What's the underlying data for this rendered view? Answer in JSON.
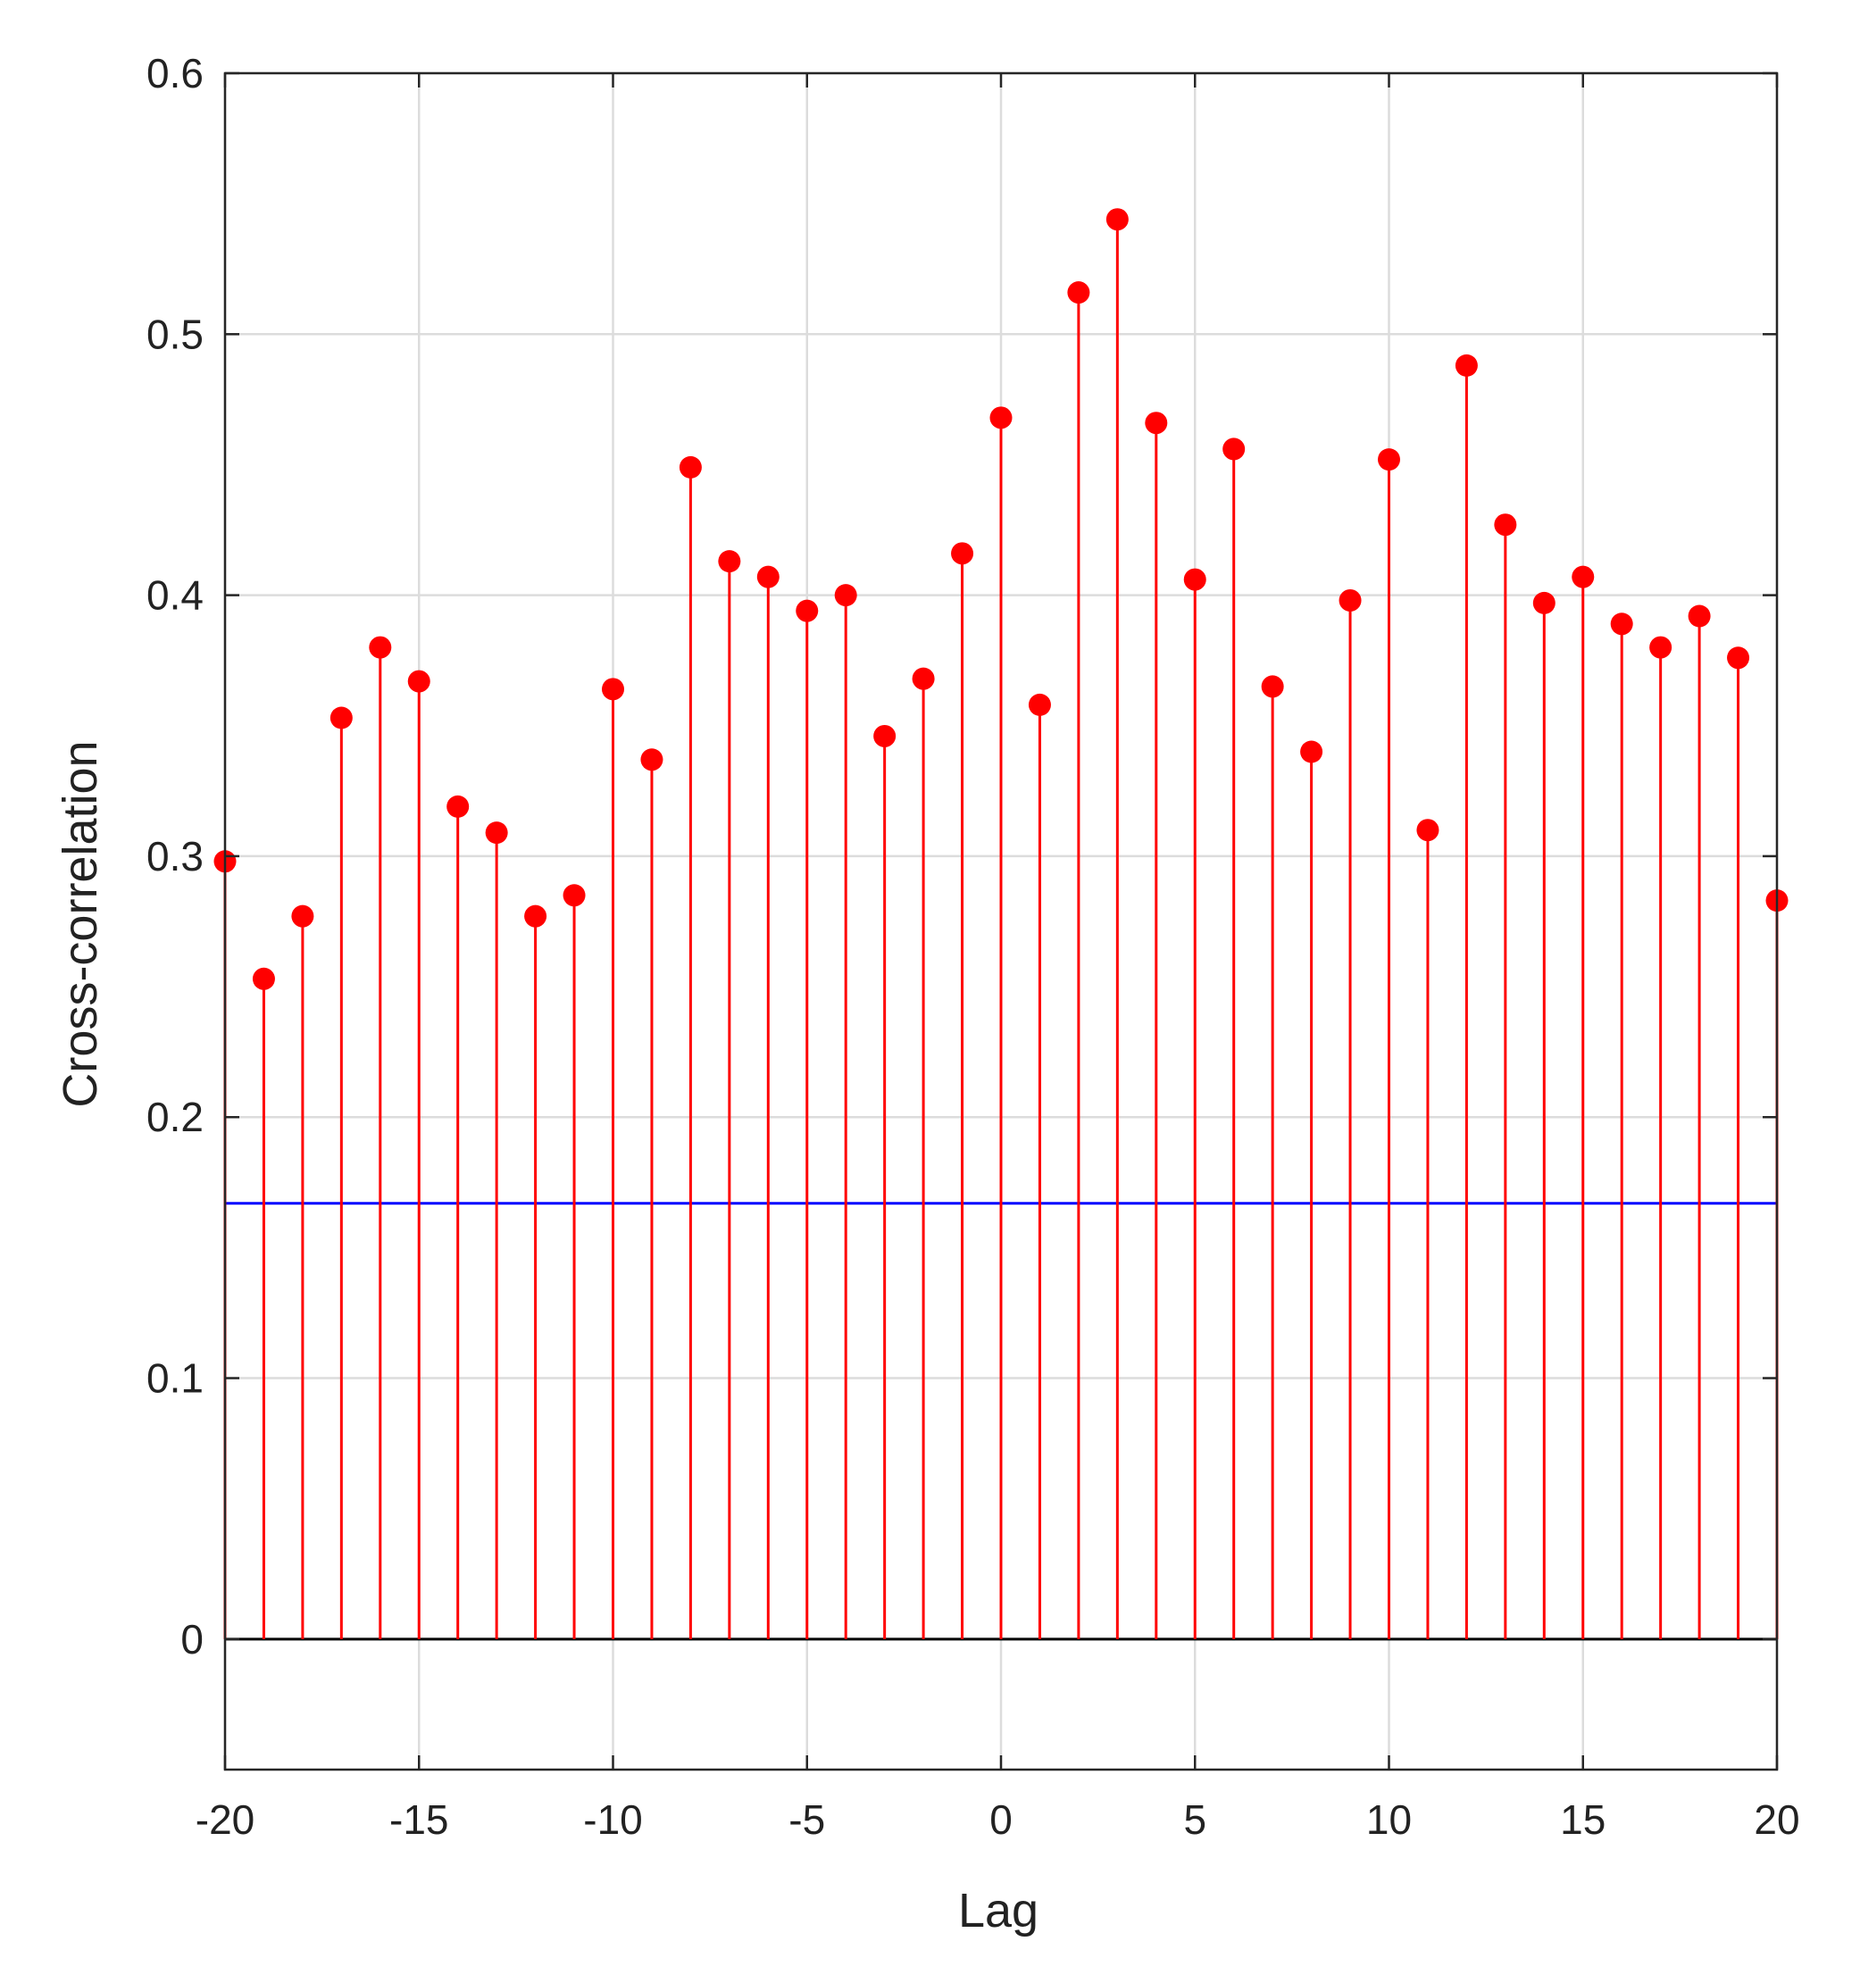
{
  "chart_data": {
    "type": "stem",
    "xlabel": "Lag",
    "ylabel": "Cross-correlation",
    "xlim": [
      -20,
      20
    ],
    "ylim": [
      -0.05,
      0.6
    ],
    "xticks": [
      -20,
      -15,
      -10,
      -5,
      0,
      5,
      10,
      15,
      20
    ],
    "yticks": [
      0,
      0.1,
      0.2,
      0.3,
      0.4,
      0.5,
      0.6
    ],
    "grid": true,
    "stem_color": "#ff0000",
    "x": [
      -20,
      -19,
      -18,
      -17,
      -16,
      -15,
      -14,
      -13,
      -12,
      -11,
      -10,
      -9,
      -8,
      -7,
      -6,
      -5,
      -4,
      -3,
      -2,
      -1,
      0,
      1,
      2,
      3,
      4,
      5,
      6,
      7,
      8,
      9,
      10,
      11,
      12,
      13,
      14,
      15,
      16,
      17,
      18,
      19,
      20
    ],
    "values": [
      0.298,
      0.253,
      0.277,
      0.353,
      0.38,
      0.367,
      0.319,
      0.309,
      0.277,
      0.285,
      0.364,
      0.337,
      0.449,
      0.413,
      0.407,
      0.394,
      0.4,
      0.346,
      0.368,
      0.416,
      0.468,
      0.358,
      0.516,
      0.544,
      0.466,
      0.406,
      0.456,
      0.365,
      0.34,
      0.398,
      0.452,
      0.31,
      0.488,
      0.427,
      0.397,
      0.407,
      0.389,
      0.38,
      0.392,
      0.376,
      0.283
    ],
    "reference_lines": [
      {
        "y": 0.167,
        "color": "#0000ff"
      },
      {
        "y": 0,
        "color": "#000000"
      }
    ]
  }
}
